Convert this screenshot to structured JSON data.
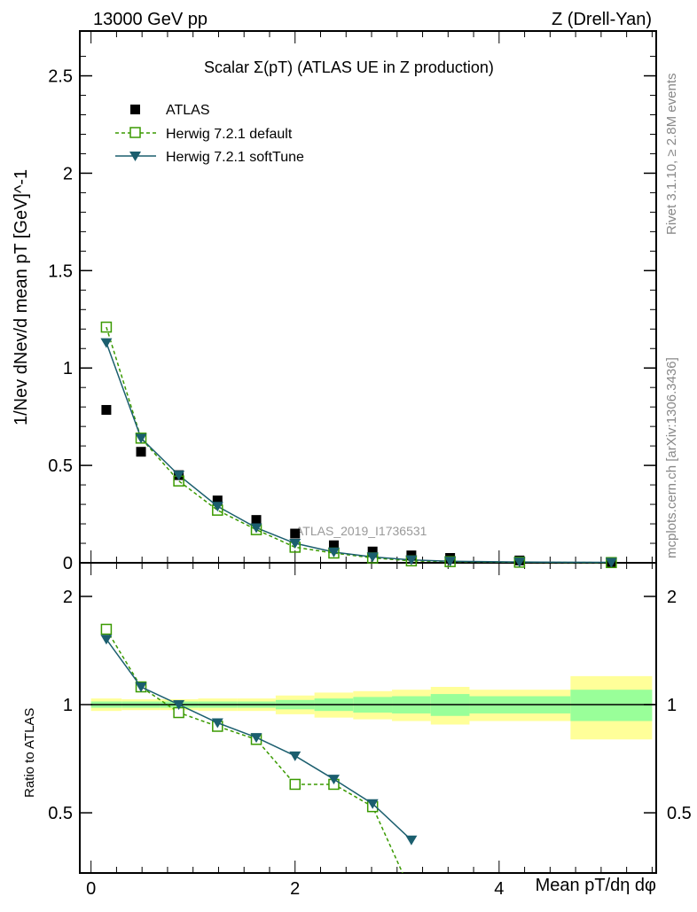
{
  "header": {
    "left": "13000 GeV pp",
    "right": "Z (Drell-Yan)"
  },
  "side": {
    "top": "Rivet 3.1.10, ≥ 2.8M events",
    "bottom": "mcplots.cern.ch [arXiv:1306.3436]"
  },
  "watermark": "ATLAS_2019_I1736531",
  "colors": {
    "atlas": "#000000",
    "default": "#3a9a00",
    "softtune": "#1b5e6e",
    "band_inner": "#99ff99",
    "band_outer": "#ffff99"
  },
  "chart_data": [
    {
      "type": "scatter",
      "title": "Scalar Σ(pT) (ATLAS UE in Z production)",
      "xlabel": "Mean pT/dη dφ",
      "ylabel": "1/Nev dNev/d mean pT [GeV]^-1",
      "xlim": [
        -0.11,
        5.54
      ],
      "ylim": [
        0,
        2.73
      ],
      "yticks": [
        {
          "v": 0,
          "l": "0"
        },
        {
          "v": 0.5,
          "l": "0.5"
        },
        {
          "v": 1,
          "l": "1"
        },
        {
          "v": 1.5,
          "l": "1.5"
        },
        {
          "v": 2,
          "l": "2"
        },
        {
          "v": 2.5,
          "l": "2.5"
        }
      ],
      "x": [
        0.15,
        0.49,
        0.86,
        1.24,
        1.62,
        2.0,
        2.38,
        2.76,
        3.14,
        3.52,
        4.2,
        5.1
      ],
      "legend": "top-left",
      "series": [
        {
          "name": "ATLAS",
          "values": [
            0.785,
            0.57,
            0.45,
            0.32,
            0.22,
            0.15,
            0.09,
            0.058,
            0.038,
            0.025,
            0.012,
            0.004
          ]
        },
        {
          "name": "Herwig 7.2.1 default",
          "values": [
            1.21,
            0.64,
            0.42,
            0.27,
            0.17,
            0.08,
            0.05,
            0.025,
            0.01,
            0.006,
            0.003,
            0.001
          ]
        },
        {
          "name": "Herwig 7.2.1 softTune",
          "values": [
            1.13,
            0.64,
            0.45,
            0.29,
            0.18,
            0.1,
            0.055,
            0.03,
            0.015,
            0.008,
            0.004,
            0.002
          ]
        }
      ]
    },
    {
      "type": "line",
      "ylabel": "Ratio to ATLAS",
      "yscale": "log",
      "xlim": [
        -0.11,
        5.54
      ],
      "ylim": [
        0.34,
        2.48
      ],
      "xticks": [
        {
          "v": 0,
          "l": "0"
        },
        {
          "v": 2,
          "l": "2"
        },
        {
          "v": 4,
          "l": "4"
        }
      ],
      "yticks": [
        {
          "v": 0.5,
          "l": "0.5"
        },
        {
          "v": 1,
          "l": "1"
        },
        {
          "v": 2,
          "l": "2"
        }
      ],
      "x": [
        0.15,
        0.49,
        0.86,
        1.24,
        1.62,
        2.0,
        2.38,
        2.76,
        3.14
      ],
      "series": [
        {
          "name": "Herwig 7.2.1 default",
          "values": [
            1.62,
            1.12,
            0.95,
            0.87,
            0.8,
            0.6,
            0.6,
            0.52,
            0.3
          ]
        },
        {
          "name": "Herwig 7.2.1 softTune",
          "values": [
            1.52,
            1.12,
            1.0,
            0.89,
            0.81,
            0.72,
            0.62,
            0.53,
            0.42
          ]
        }
      ],
      "band_edges": [
        0,
        0.3,
        0.68,
        1.05,
        1.43,
        1.81,
        2.19,
        2.57,
        2.95,
        3.33,
        3.71,
        4.7,
        5.5
      ],
      "band_inner": [
        0.02,
        0.02,
        0.02,
        0.02,
        0.02,
        0.03,
        0.04,
        0.05,
        0.055,
        0.07,
        0.055,
        0.1
      ],
      "band_outer": [
        0.04,
        0.035,
        0.035,
        0.04,
        0.04,
        0.06,
        0.08,
        0.09,
        0.1,
        0.12,
        0.1,
        0.2
      ]
    }
  ]
}
